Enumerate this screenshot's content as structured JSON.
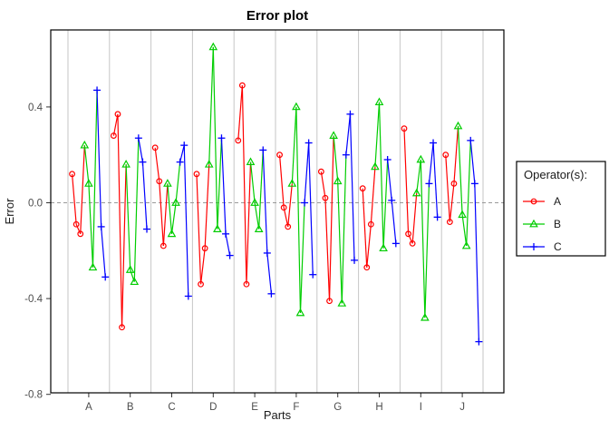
{
  "chart_data": {
    "type": "line",
    "title": "Error plot",
    "xlabel": "Parts",
    "ylabel": "Error",
    "legend_title": "Operator(s):",
    "grid": "vertical-part-separators",
    "zero_line": {
      "value": 0.0,
      "style": "dashed",
      "color": "#999999"
    },
    "ylim": [
      -0.79,
      0.72
    ],
    "yticks": [
      0.4,
      0.0,
      -0.4,
      -0.8
    ],
    "ytick_labels": [
      "0.4",
      "0.0",
      "-0.4",
      "-0.8"
    ],
    "categories": [
      "A",
      "B",
      "C",
      "D",
      "E",
      "F",
      "G",
      "H",
      "I",
      "J"
    ],
    "legend_position": "right",
    "series": [
      {
        "name": "A",
        "color": "#FF0000",
        "marker": "circle",
        "values_by_part": [
          [
            0.12,
            -0.09,
            -0.13
          ],
          [
            0.28,
            0.37,
            -0.52
          ],
          [
            0.23,
            0.09,
            -0.18
          ],
          [
            0.12,
            -0.34,
            -0.19
          ],
          [
            0.26,
            0.49,
            -0.34
          ],
          [
            0.2,
            -0.02,
            -0.1
          ],
          [
            0.13,
            0.02,
            -0.41
          ],
          [
            0.06,
            -0.27,
            -0.09
          ],
          [
            0.31,
            -0.13,
            -0.17
          ],
          [
            0.2,
            -0.08,
            0.08
          ]
        ]
      },
      {
        "name": "B",
        "color": "#00CD00",
        "marker": "triangle",
        "values_by_part": [
          [
            0.24,
            0.08,
            -0.27
          ],
          [
            0.16,
            -0.28,
            -0.33
          ],
          [
            0.08,
            -0.13,
            0.0
          ],
          [
            0.16,
            0.65,
            -0.11
          ],
          [
            0.17,
            0.0,
            -0.11
          ],
          [
            0.08,
            0.4,
            -0.46
          ],
          [
            0.28,
            0.09,
            -0.42
          ],
          [
            0.15,
            0.42,
            -0.19
          ],
          [
            0.04,
            0.18,
            -0.48
          ],
          [
            0.32,
            -0.05,
            -0.18
          ]
        ]
      },
      {
        "name": "C",
        "color": "#0000FF",
        "marker": "plus",
        "values_by_part": [
          [
            0.47,
            -0.1,
            -0.31
          ],
          [
            0.27,
            0.17,
            -0.11
          ],
          [
            0.17,
            0.24,
            -0.39
          ],
          [
            0.27,
            -0.13,
            -0.22
          ],
          [
            0.22,
            -0.21,
            -0.38
          ],
          [
            0.0,
            0.25,
            -0.3
          ],
          [
            0.2,
            0.37,
            -0.24
          ],
          [
            0.18,
            0.01,
            -0.17
          ],
          [
            0.08,
            0.25,
            -0.06
          ],
          [
            0.26,
            0.08,
            -0.58
          ]
        ]
      }
    ]
  }
}
